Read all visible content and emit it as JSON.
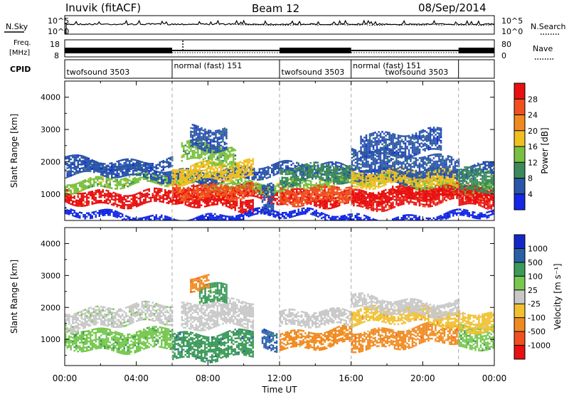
{
  "header": {
    "station": "Inuvik (fitACF)",
    "beam": "Beam 12",
    "date": "08/Sep/2014"
  },
  "noise_panel": {
    "left_label": "N.Sky",
    "left_ticks": [
      "10^5",
      "10^0"
    ],
    "right_label": "N.Search",
    "right_ticks": [
      "10^5",
      "10^0"
    ]
  },
  "freq_panel": {
    "left_label_top": "Freq.",
    "left_label_unit": "[MHz]",
    "left_ticks": [
      "18",
      "8"
    ],
    "right_label": "Nave",
    "right_ticks": [
      "80",
      "0"
    ]
  },
  "cpid_panel": {
    "label": "CPID",
    "segments": [
      {
        "name": "twofsound",
        "id": "3503",
        "start": 0,
        "end": 6
      },
      {
        "name": "normal (fast)",
        "id": "151",
        "start": 6,
        "end": 12
      },
      {
        "name": "twofsound",
        "id": "3503",
        "start": 12,
        "end": 16
      },
      {
        "name": "normal (fast)",
        "id": "151",
        "start": 16,
        "end": 22
      },
      {
        "name": "twofsound",
        "id": "3503",
        "start": 22,
        "end": 24
      }
    ],
    "labels": [
      {
        "text": "twofsound 3503",
        "time": 0.1,
        "row": "low"
      },
      {
        "text": "normal (fast) 151",
        "time": 6.1,
        "row": "high"
      },
      {
        "text": "twofsound 3503",
        "time": 12.1,
        "row": "low"
      },
      {
        "text": "normal (fast) 151",
        "time": 16.1,
        "row": "high"
      },
      {
        "text": "twofsound 3503",
        "time": 17.9,
        "row": "low"
      }
    ]
  },
  "power_panel": {
    "ylabel": "Slant Range [km]",
    "colorbar_label": "Power [dB]",
    "colorbar_ticks": [
      "4",
      "8",
      "12",
      "16",
      "20",
      "24",
      "28"
    ]
  },
  "velocity_panel": {
    "ylabel": "Slant Range [km]",
    "colorbar_label": "Velocity [m s⁻¹]",
    "colorbar_ticks": [
      "-1000",
      "-500",
      "-100",
      "-25",
      "25",
      "100",
      "500",
      "1000"
    ]
  },
  "xaxis": {
    "label": "Time UT",
    "ticks": [
      "00:00",
      "04:00",
      "08:00",
      "12:00",
      "16:00",
      "20:00",
      "00:00"
    ]
  },
  "colors": {
    "power_scale": [
      "#1428e6",
      "#2a55a8",
      "#3c8a5a",
      "#7ac040",
      "#f0c020",
      "#f08a20",
      "#f05020",
      "#e81010"
    ],
    "velocity_scale": [
      "#e81010",
      "#f05020",
      "#f08a20",
      "#f0c030",
      "#c8c8c8",
      "#78c850",
      "#3c9a5a",
      "#2a60a8",
      "#1428c8"
    ]
  },
  "chart_data": [
    {
      "type": "heatmap",
      "panel": "power",
      "x_range_hours": [
        0,
        24
      ],
      "ylim": [
        180,
        4500
      ],
      "yticks": [
        1000,
        2000,
        3000,
        4000
      ],
      "dashed_vlines_hours": [
        6,
        12,
        16,
        22
      ],
      "colorbar_range_db": [
        0,
        32
      ],
      "blobs": [
        {
          "t": [
            0.0,
            24.0
          ],
          "r": [
            780,
            1180
          ],
          "v": 29
        },
        {
          "t": [
            0.0,
            24.0
          ],
          "r": [
            1180,
            1500
          ],
          "v": 14
        },
        {
          "t": [
            0.0,
            24.0
          ],
          "r": [
            1500,
            1850
          ],
          "v": 6
        },
        {
          "t": [
            0.0,
            6.0
          ],
          "r": [
            1850,
            2150
          ],
          "v": 4
        },
        {
          "t": [
            6.0,
            10.5
          ],
          "r": [
            600,
            1000
          ],
          "v": 30
        },
        {
          "t": [
            6.0,
            10.5
          ],
          "r": [
            1000,
            1400
          ],
          "v": 24
        },
        {
          "t": [
            6.0,
            10.5
          ],
          "r": [
            1400,
            1900
          ],
          "v": 18
        },
        {
          "t": [
            6.5,
            9.5
          ],
          "r": [
            1900,
            2500
          ],
          "v": 12
        },
        {
          "t": [
            7.0,
            9.0
          ],
          "r": [
            2500,
            3200
          ],
          "v": 5
        },
        {
          "t": [
            11.0,
            11.6
          ],
          "r": [
            300,
            1200
          ],
          "v": 4
        },
        {
          "t": [
            12.0,
            16.0
          ],
          "r": [
            850,
            1300
          ],
          "v": 26
        },
        {
          "t": [
            12.0,
            16.0
          ],
          "r": [
            1300,
            1800
          ],
          "v": 9
        },
        {
          "t": [
            16.0,
            22.0
          ],
          "r": [
            700,
            1200
          ],
          "v": 29
        },
        {
          "t": [
            16.0,
            22.0
          ],
          "r": [
            1200,
            1650
          ],
          "v": 16
        },
        {
          "t": [
            16.0,
            22.0
          ],
          "r": [
            1650,
            2300
          ],
          "v": 7
        },
        {
          "t": [
            16.5,
            21.0
          ],
          "r": [
            2300,
            3000
          ],
          "v": 4
        },
        {
          "t": [
            22.0,
            24.0
          ],
          "r": [
            600,
            1200
          ],
          "v": 28
        },
        {
          "t": [
            22.0,
            24.0
          ],
          "r": [
            1200,
            1900
          ],
          "v": 10
        },
        {
          "t": [
            0.0,
            24.0
          ],
          "r": [
            200,
            400
          ],
          "v": 3
        }
      ]
    },
    {
      "type": "heatmap",
      "panel": "velocity",
      "x_range_hours": [
        0,
        24
      ],
      "ylim": [
        180,
        4500
      ],
      "yticks": [
        1000,
        2000,
        3000,
        4000
      ],
      "dashed_vlines_hours": [
        6,
        12,
        16,
        22
      ],
      "colorbar_values_ms": [
        -1000,
        -500,
        -100,
        -25,
        25,
        100,
        500,
        1000
      ],
      "blobs": [
        {
          "t": [
            0.0,
            6.0
          ],
          "r": [
            750,
            1400
          ],
          "v": 100
        },
        {
          "t": [
            0.0,
            6.0
          ],
          "r": [
            1400,
            2000
          ],
          "v": 25
        },
        {
          "t": [
            6.0,
            10.5
          ],
          "r": [
            500,
            1300
          ],
          "v": 300
        },
        {
          "t": [
            6.5,
            10.5
          ],
          "r": [
            1300,
            2100
          ],
          "v": 10
        },
        {
          "t": [
            7.5,
            9.0
          ],
          "r": [
            2100,
            2700
          ],
          "v": 200
        },
        {
          "t": [
            7.0,
            8.0
          ],
          "r": [
            2700,
            3100
          ],
          "v": -300
        },
        {
          "t": [
            11.0,
            11.8
          ],
          "r": [
            600,
            1200
          ],
          "v": 700
        },
        {
          "t": [
            12.0,
            16.0
          ],
          "r": [
            800,
            1350
          ],
          "v": -200
        },
        {
          "t": [
            12.0,
            16.0
          ],
          "r": [
            1350,
            1800
          ],
          "v": 0
        },
        {
          "t": [
            16.0,
            22.0
          ],
          "r": [
            800,
            1400
          ],
          "v": -300
        },
        {
          "t": [
            16.0,
            22.0
          ],
          "r": [
            1400,
            1900
          ],
          "v": -60
        },
        {
          "t": [
            16.0,
            22.0
          ],
          "r": [
            1900,
            2300
          ],
          "v": 0
        },
        {
          "t": [
            22.0,
            24.0
          ],
          "r": [
            600,
            1300
          ],
          "v": 80
        },
        {
          "t": [
            22.0,
            24.0
          ],
          "r": [
            1300,
            1900
          ],
          "v": -50
        }
      ]
    }
  ]
}
